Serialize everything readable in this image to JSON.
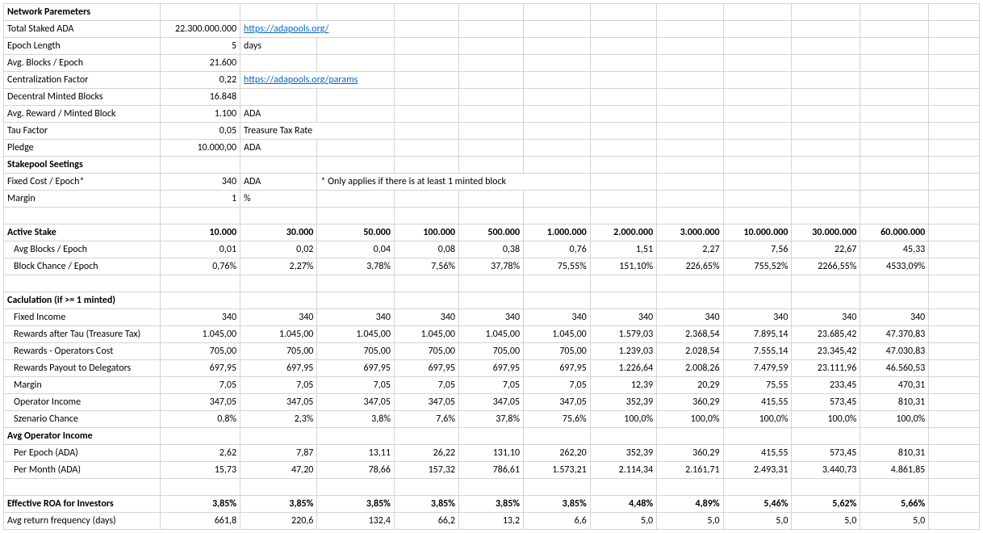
{
  "sections": {
    "network": "Network Paremeters",
    "stakepool": "Stakepool Seetings",
    "activeStake": "Active Stake",
    "calc": "Caclulation (if >= 1 minted)",
    "avgOp": "Avg Operator Income",
    "roa": "Effective ROA for Investors",
    "freq": "Avg return frequency (days)"
  },
  "np": {
    "totalStaked": {
      "label": "Total Staked ADA",
      "value": "22.300.000.000",
      "link": "https://adapools.org/"
    },
    "epochLength": {
      "label": "Epoch Length",
      "value": "5",
      "unit": "days"
    },
    "avgBlocksEpoch": {
      "label": "Avg. Blocks / Epoch",
      "value": "21.600"
    },
    "centralFactor": {
      "label": "Centralization Factor",
      "value": "0,22",
      "link": "https://adapools.org/params"
    },
    "decentralBlocks": {
      "label": "Decentral Minted Blocks",
      "value": "16.848"
    },
    "avgReward": {
      "label": "Avg. Reward / Minted Block",
      "value": "1.100",
      "unit": "ADA"
    },
    "tau": {
      "label": "Tau Factor",
      "value": "0,05",
      "unit": "Treasure Tax Rate"
    },
    "pledge": {
      "label": "Pledge",
      "value": "10.000,00",
      "unit": "ADA"
    }
  },
  "sp": {
    "fixedCost": {
      "label": "Fixed Cost / Epoch*",
      "value": "340",
      "unit": "ADA",
      "note": "* Only applies if there is at least 1 minted block"
    },
    "margin": {
      "label": "Margin",
      "value": "1",
      "unit": "%"
    }
  },
  "stakeHeaders": [
    "10.000",
    "30.000",
    "50.000",
    "100.000",
    "500.000",
    "1.000.000",
    "2.000.000",
    "3.000.000",
    "10.000.000",
    "30.000.000",
    "60.000.000"
  ],
  "rows": {
    "avgBlocks": {
      "label": "Avg Blocks / Epoch",
      "vals": [
        "0,01",
        "0,02",
        "0,04",
        "0,08",
        "0,38",
        "0,76",
        "1,51",
        "2,27",
        "7,56",
        "22,67",
        "45,33"
      ]
    },
    "blockChance": {
      "label": "Block Chance / Epoch",
      "vals": [
        "0,76%",
        "2,27%",
        "3,78%",
        "7,56%",
        "37,78%",
        "75,55%",
        "151,10%",
        "226,65%",
        "755,52%",
        "2266,55%",
        "4533,09%"
      ]
    },
    "fixedIncome": {
      "label": "Fixed Income",
      "vals": [
        "340",
        "340",
        "340",
        "340",
        "340",
        "340",
        "340",
        "340",
        "340",
        "340",
        "340"
      ]
    },
    "rewardsTau": {
      "label": "Rewards after Tau (Treasure Tax)",
      "vals": [
        "1.045,00",
        "1.045,00",
        "1.045,00",
        "1.045,00",
        "1.045,00",
        "1.045,00",
        "1.579,03",
        "2.368,54",
        "7.895,14",
        "23.685,42",
        "47.370,83"
      ]
    },
    "rewardsOpCost": {
      "label": "Rewards - Operators Cost",
      "vals": [
        "705,00",
        "705,00",
        "705,00",
        "705,00",
        "705,00",
        "705,00",
        "1.239,03",
        "2.028,54",
        "7.555,14",
        "23.345,42",
        "47.030,83"
      ]
    },
    "rewardsPayout": {
      "label": "Rewards Payout to Delegators",
      "vals": [
        "697,95",
        "697,95",
        "697,95",
        "697,95",
        "697,95",
        "697,95",
        "1.226,64",
        "2.008,26",
        "7.479,59",
        "23.111,96",
        "46.560,53"
      ]
    },
    "marginRow": {
      "label": "Margin",
      "vals": [
        "7,05",
        "7,05",
        "7,05",
        "7,05",
        "7,05",
        "7,05",
        "12,39",
        "20,29",
        "75,55",
        "233,45",
        "470,31"
      ]
    },
    "operatorIncome": {
      "label": "Operator Income",
      "vals": [
        "347,05",
        "347,05",
        "347,05",
        "347,05",
        "347,05",
        "347,05",
        "352,39",
        "360,29",
        "415,55",
        "573,45",
        "810,31"
      ]
    },
    "szenario": {
      "label": "Szenario Chance",
      "vals": [
        "0,8%",
        "2,3%",
        "3,8%",
        "7,6%",
        "37,8%",
        "75,6%",
        "100,0%",
        "100,0%",
        "100,0%",
        "100,0%",
        "100,0%"
      ]
    },
    "perEpoch": {
      "label": "Per Epoch (ADA)",
      "vals": [
        "2,62",
        "7,87",
        "13,11",
        "26,22",
        "131,10",
        "262,20",
        "352,39",
        "360,29",
        "415,55",
        "573,45",
        "810,31"
      ]
    },
    "perMonth": {
      "label": "Per Month (ADA)",
      "vals": [
        "15,73",
        "47,20",
        "78,66",
        "157,32",
        "786,61",
        "1.573,21",
        "2.114,34",
        "2.161,71",
        "2.493,31",
        "3.440,73",
        "4.861,85"
      ]
    },
    "roa": {
      "vals": [
        "3,85%",
        "3,85%",
        "3,85%",
        "3,85%",
        "3,85%",
        "3,85%",
        "4,48%",
        "4,89%",
        "5,46%",
        "5,62%",
        "5,66%"
      ]
    },
    "freq": {
      "vals": [
        "661,8",
        "220,6",
        "132,4",
        "66,2",
        "13,2",
        "6,6",
        "5,0",
        "5,0",
        "5,0",
        "5,0",
        "5,0"
      ]
    }
  },
  "style": {
    "borderColor": "#d4d4d4",
    "linkColor": "#0066cc",
    "textColor": "#000000",
    "background": "#ffffff",
    "fontSize": 12
  }
}
